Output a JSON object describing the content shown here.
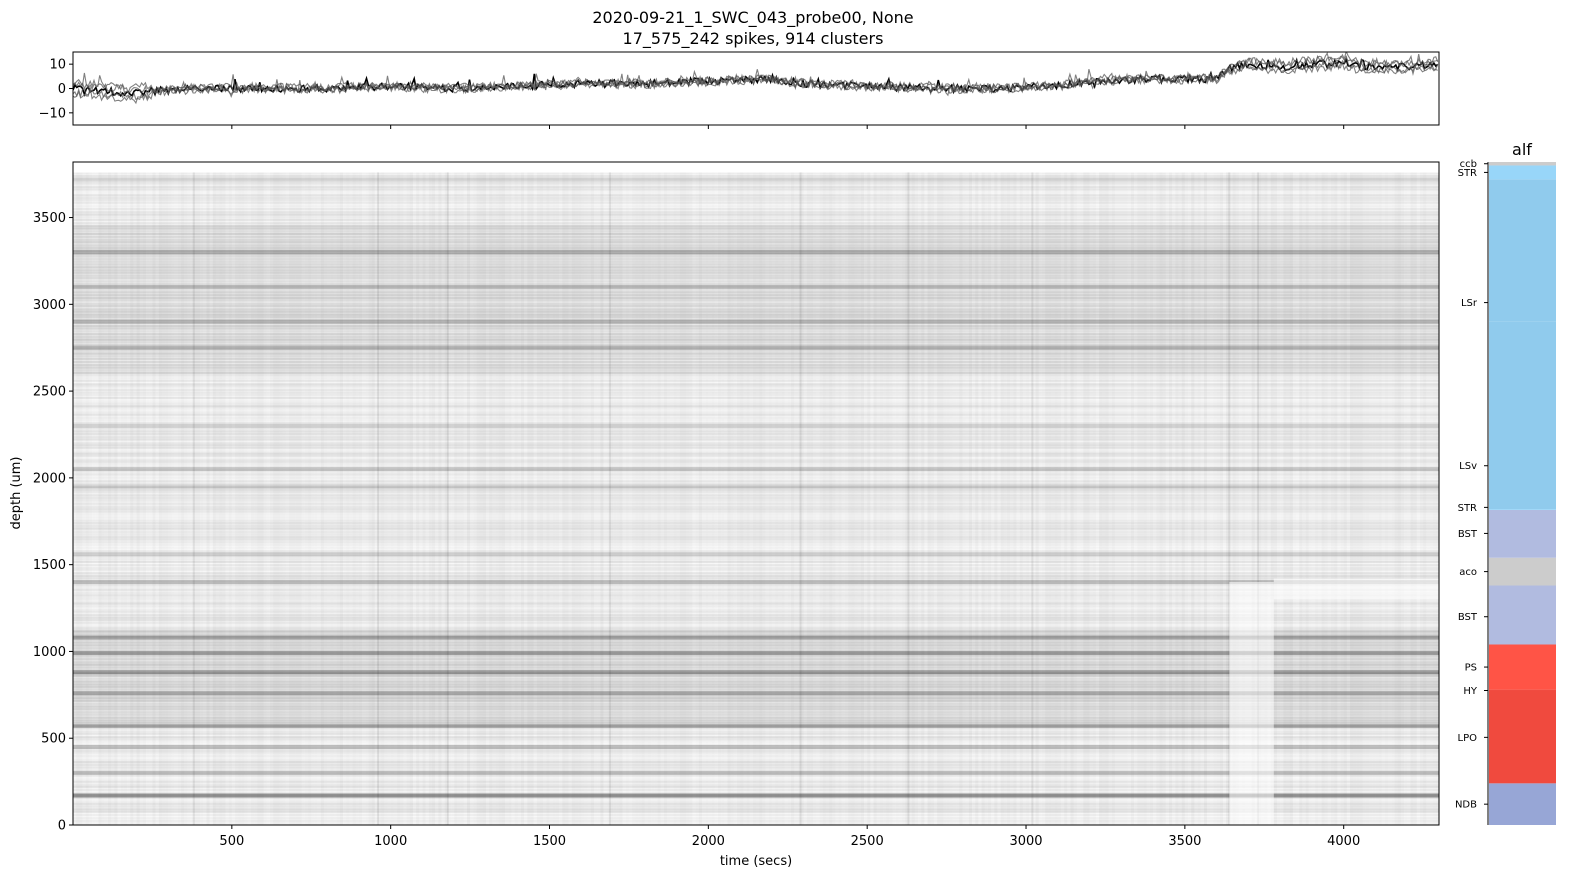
{
  "figure": {
    "title_line1": "2020-09-21_1_SWC_043_probe00, None",
    "title_line2": "17_575_242 spikes, 914 clusters"
  },
  "chart_data": [
    {
      "type": "line",
      "panel": "drift",
      "xlim": [
        0,
        4300
      ],
      "ylim": [
        -15,
        15
      ],
      "yticks": [
        10,
        0,
        -10
      ],
      "ytick_labels": [
        "10",
        "0",
        "−10"
      ],
      "color": "#000000",
      "trace_count": 5,
      "x": [
        0,
        100,
        200,
        250,
        400,
        600,
        800,
        1000,
        1200,
        1400,
        1600,
        1800,
        2000,
        2200,
        2300,
        2500,
        2700,
        2900,
        3100,
        3200,
        3400,
        3600,
        3640,
        3700,
        3800,
        3900,
        4000,
        4050,
        4200,
        4300
      ],
      "y": [
        0,
        -1,
        -2,
        -1,
        0,
        0,
        0,
        1,
        0,
        1,
        2,
        2,
        3,
        4,
        2,
        1,
        0,
        0,
        1,
        3,
        4,
        4,
        8,
        10,
        9,
        10,
        11,
        9,
        9,
        10
      ],
      "series_offsets": [
        0,
        1.5,
        -1.5,
        2.5,
        -2.5
      ]
    },
    {
      "type": "heatmap",
      "panel": "raster",
      "xlabel": "time (secs)",
      "ylabel": "depth (um)",
      "xlim": [
        0,
        4300
      ],
      "ylim": [
        0,
        3820
      ],
      "xticks": [
        500,
        1000,
        1500,
        2000,
        2500,
        3000,
        3500,
        4000
      ],
      "yticks": [
        0,
        500,
        1000,
        1500,
        2000,
        2500,
        3000,
        3500
      ],
      "colormap": "Greys",
      "dark_bands": [
        {
          "depth": 3720,
          "intensity": 0.15
        },
        {
          "depth": 3300,
          "intensity": 0.35
        },
        {
          "depth": 3100,
          "intensity": 0.3
        },
        {
          "depth": 2900,
          "intensity": 0.3
        },
        {
          "depth": 2750,
          "intensity": 0.35
        },
        {
          "depth": 2300,
          "intensity": 0.2
        },
        {
          "depth": 2050,
          "intensity": 0.25
        },
        {
          "depth": 1950,
          "intensity": 0.22
        },
        {
          "depth": 1560,
          "intensity": 0.25
        },
        {
          "depth": 1400,
          "intensity": 0.3
        },
        {
          "depth": 1080,
          "intensity": 0.45
        },
        {
          "depth": 990,
          "intensity": 0.5
        },
        {
          "depth": 880,
          "intensity": 0.5
        },
        {
          "depth": 760,
          "intensity": 0.4
        },
        {
          "depth": 570,
          "intensity": 0.4
        },
        {
          "depth": 450,
          "intensity": 0.35
        },
        {
          "depth": 300,
          "intensity": 0.3
        },
        {
          "depth": 170,
          "intensity": 0.6
        }
      ],
      "dark_columns": [
        380,
        960,
        1180,
        1690,
        2290,
        2630,
        3020,
        3640,
        3730
      ]
    },
    {
      "type": "bar",
      "panel": "atlas",
      "title": "alf",
      "ylim": [
        0,
        3820
      ],
      "regions": [
        {
          "label": "NDB",
          "bottom": 0,
          "top": 240,
          "color": "#97a6d6"
        },
        {
          "label": "LPO",
          "bottom": 240,
          "top": 775,
          "color": "#f04a3e"
        },
        {
          "label": "HY",
          "bottom": 775,
          "top": 780,
          "color": "#f04a3e"
        },
        {
          "label": "PS",
          "bottom": 780,
          "top": 1040,
          "color": "#ff5446"
        },
        {
          "label": "BST",
          "bottom": 1040,
          "top": 1380,
          "color": "#b1bbe0"
        },
        {
          "label": "aco",
          "bottom": 1380,
          "top": 1540,
          "color": "#cccccc"
        },
        {
          "label": "BST",
          "bottom": 1540,
          "top": 1815,
          "color": "#b1bbe0"
        },
        {
          "label": "STR",
          "bottom": 1815,
          "top": 1820,
          "color": "#98d6f9"
        },
        {
          "label": "LSv",
          "bottom": 1820,
          "top": 2900,
          "color": "#90cbed"
        },
        {
          "label": "LSr",
          "bottom": 2900,
          "top": 3720,
          "color": "#90cbed"
        },
        {
          "label": "STR",
          "bottom": 3720,
          "top": 3800,
          "color": "#98d6f9"
        },
        {
          "label": "ccb",
          "bottom": 3800,
          "top": 3820,
          "color": "#cccccc"
        }
      ],
      "labels": [
        {
          "text": "ccb",
          "depth": 3810
        },
        {
          "text": "STR",
          "depth": 3760
        },
        {
          "text": "LSr",
          "depth": 3010
        },
        {
          "text": "LSv",
          "depth": 2070
        },
        {
          "text": "STR",
          "depth": 1830
        },
        {
          "text": "BST",
          "depth": 1680
        },
        {
          "text": "aco",
          "depth": 1460
        },
        {
          "text": "BST",
          "depth": 1200
        },
        {
          "text": "PS",
          "depth": 910
        },
        {
          "text": "HY",
          "depth": 775
        },
        {
          "text": "LPO",
          "depth": 505
        },
        {
          "text": "NDB",
          "depth": 120
        }
      ]
    }
  ]
}
